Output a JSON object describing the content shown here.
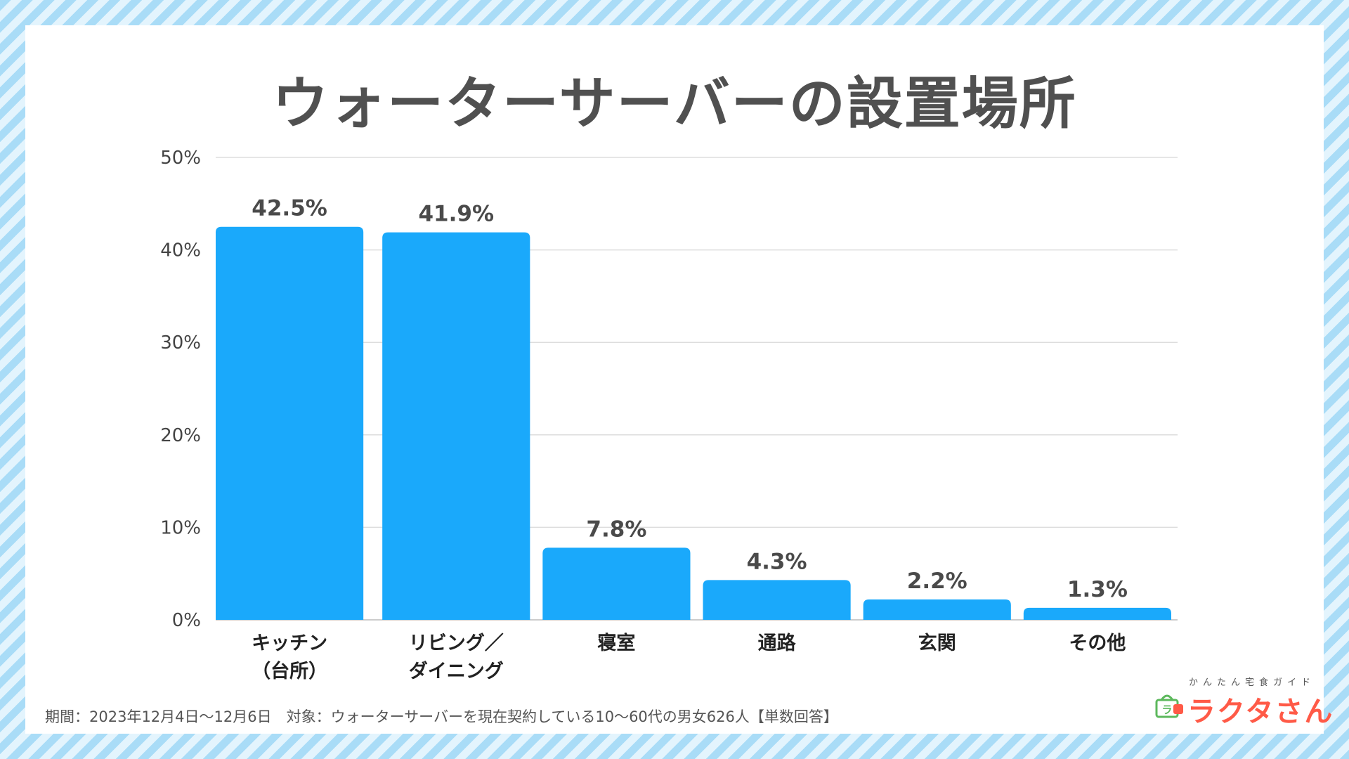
{
  "title": "ウォーターサーバーの設置場所",
  "chart_data": {
    "type": "bar",
    "title": "ウォーターサーバーの設置場所",
    "categories": [
      [
        "キッチン",
        "（台所）"
      ],
      [
        "リビング／",
        "ダイニング"
      ],
      [
        "寝室"
      ],
      [
        "通路"
      ],
      [
        "玄関"
      ],
      [
        "その他"
      ]
    ],
    "values": [
      42.5,
      41.9,
      7.8,
      4.3,
      2.2,
      1.3
    ],
    "value_labels": [
      "42.5%",
      "41.9%",
      "7.8%",
      "4.3%",
      "2.2%",
      "1.3%"
    ],
    "ylim": [
      0,
      50
    ],
    "yticks": [
      0,
      10,
      20,
      30,
      40,
      50
    ],
    "ytick_labels": [
      "0%",
      "10%",
      "20%",
      "30%",
      "40%",
      "50%"
    ],
    "xlabel": "",
    "ylabel": "",
    "grid": true,
    "bar_color": "#1aa9fb"
  },
  "footnote": "期間：2023年12月4日〜12月6日　対象：ウォーターサーバーを現在契約している10〜60代の男女626人【単数回答】",
  "logo": {
    "tagline": "かんたん宅食ガイド",
    "name": "ラクタさん",
    "icon_text": "ラ",
    "color": "#ff5a47"
  }
}
